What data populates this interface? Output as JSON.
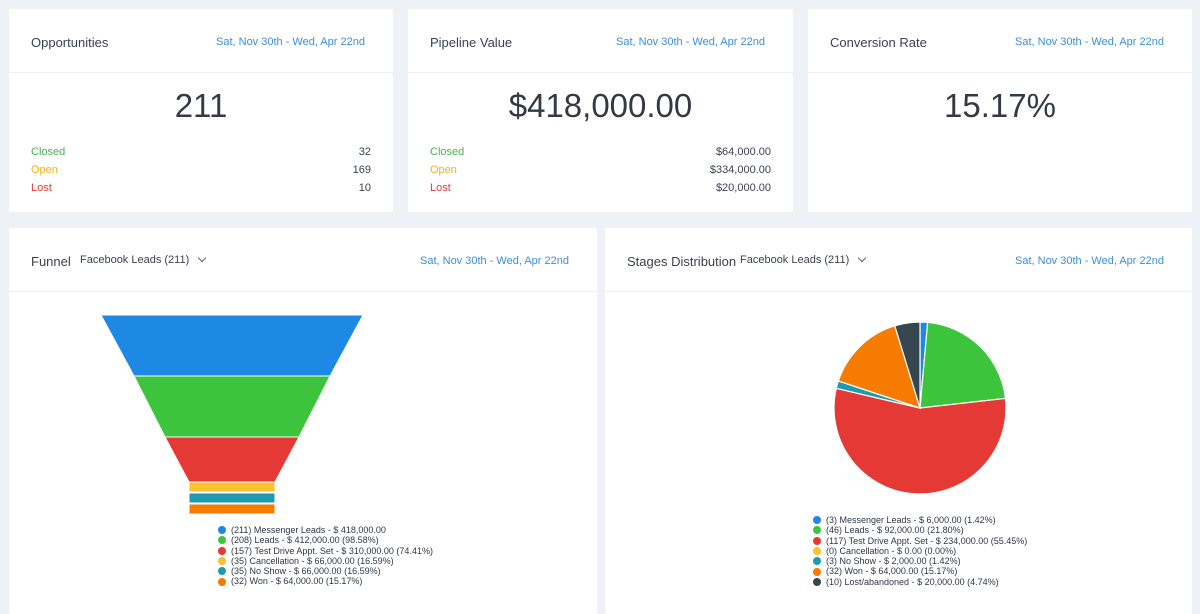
{
  "colors": {
    "blue": "#1e88e5",
    "green": "#3cc43c",
    "red": "#e53935",
    "yellow": "#fbc02d",
    "teal": "#1e9bb0",
    "orange": "#f57c00",
    "dark": "#37474f"
  },
  "cards": {
    "opportunities": {
      "title": "Opportunities",
      "date": "Sat, Nov 30th - Wed, Apr 22nd",
      "value": "211",
      "rows": [
        {
          "label": "Closed",
          "value": "32"
        },
        {
          "label": "Open",
          "value": "169"
        },
        {
          "label": "Lost",
          "value": "10"
        }
      ]
    },
    "pipeline": {
      "title": "Pipeline Value",
      "date": "Sat, Nov 30th - Wed, Apr 22nd",
      "value": "$418,000.00",
      "rows": [
        {
          "label": "Closed",
          "value": "$64,000.00"
        },
        {
          "label": "Open",
          "value": "$334,000.00"
        },
        {
          "label": "Lost",
          "value": "$20,000.00"
        }
      ]
    },
    "conversion": {
      "title": "Conversion Rate",
      "date": "Sat, Nov 30th - Wed, Apr 22nd",
      "value": "15.17%"
    }
  },
  "funnel": {
    "title": "Funnel",
    "dropdown": "Facebook Leads (211)",
    "date": "Sat, Nov 30th - Wed, Apr 22nd"
  },
  "stages": {
    "title": "Stages Distribution",
    "dropdown": "Facebook Leads (211)",
    "date": "Sat, Nov 30th - Wed, Apr 22nd"
  },
  "chart_data": [
    {
      "type": "funnel",
      "series": [
        {
          "count": 211,
          "name": "Messenger Leads",
          "amount": 418000,
          "percent": 100,
          "legend": "(211) Messenger Leads - $ 418,000.00",
          "color": "#1e88e5"
        },
        {
          "count": 208,
          "name": "Leads",
          "amount": 412000,
          "percent": 98.58,
          "legend": "(208) Leads - $ 412,000.00 (98.58%)",
          "color": "#3cc43c"
        },
        {
          "count": 157,
          "name": "Test Drive Appt. Set",
          "amount": 310000,
          "percent": 74.41,
          "legend": "(157) Test Drive Appt. Set - $ 310,000.00 (74.41%)",
          "color": "#e53935"
        },
        {
          "count": 35,
          "name": "Cancellation",
          "amount": 66000,
          "percent": 16.59,
          "legend": "(35) Cancellation - $ 66,000.00 (16.59%)",
          "color": "#fbc02d"
        },
        {
          "count": 35,
          "name": "No Show",
          "amount": 66000,
          "percent": 16.59,
          "legend": "(35) No Show - $ 66,000.00 (16.59%)",
          "color": "#1e9bb0"
        },
        {
          "count": 32,
          "name": "Won",
          "amount": 64000,
          "percent": 15.17,
          "legend": "(32) Won - $ 64,000.00 (15.17%)",
          "color": "#f57c00"
        }
      ]
    },
    {
      "type": "pie",
      "series": [
        {
          "count": 3,
          "name": "Messenger Leads",
          "amount": 6000,
          "percent": 1.42,
          "legend": "(3) Messenger Leads - $ 6,000.00 (1.42%)",
          "color": "#1e88e5"
        },
        {
          "count": 46,
          "name": "Leads",
          "amount": 92000,
          "percent": 21.8,
          "legend": "(46) Leads - $ 92,000.00 (21.80%)",
          "color": "#3cc43c"
        },
        {
          "count": 117,
          "name": "Test Drive Appt. Set",
          "amount": 234000,
          "percent": 55.45,
          "legend": "(117) Test Drive Appt. Set - $ 234,000.00 (55.45%)",
          "color": "#e53935"
        },
        {
          "count": 0,
          "name": "Cancellation",
          "amount": 0,
          "percent": 0.0,
          "legend": "(0) Cancellation - $ 0.00 (0.00%)",
          "color": "#fbc02d"
        },
        {
          "count": 3,
          "name": "No Show",
          "amount": 2000,
          "percent": 1.42,
          "legend": "(3) No Show - $ 2,000.00 (1.42%)",
          "color": "#1e9bb0"
        },
        {
          "count": 32,
          "name": "Won",
          "amount": 64000,
          "percent": 15.17,
          "legend": "(32) Won - $ 64,000.00 (15.17%)",
          "color": "#f57c00"
        },
        {
          "count": 10,
          "name": "Lost/abandoned",
          "amount": 20000,
          "percent": 4.74,
          "legend": "(10) Lost/abandoned - $ 20,000.00 (4.74%)",
          "color": "#37474f"
        }
      ]
    }
  ]
}
